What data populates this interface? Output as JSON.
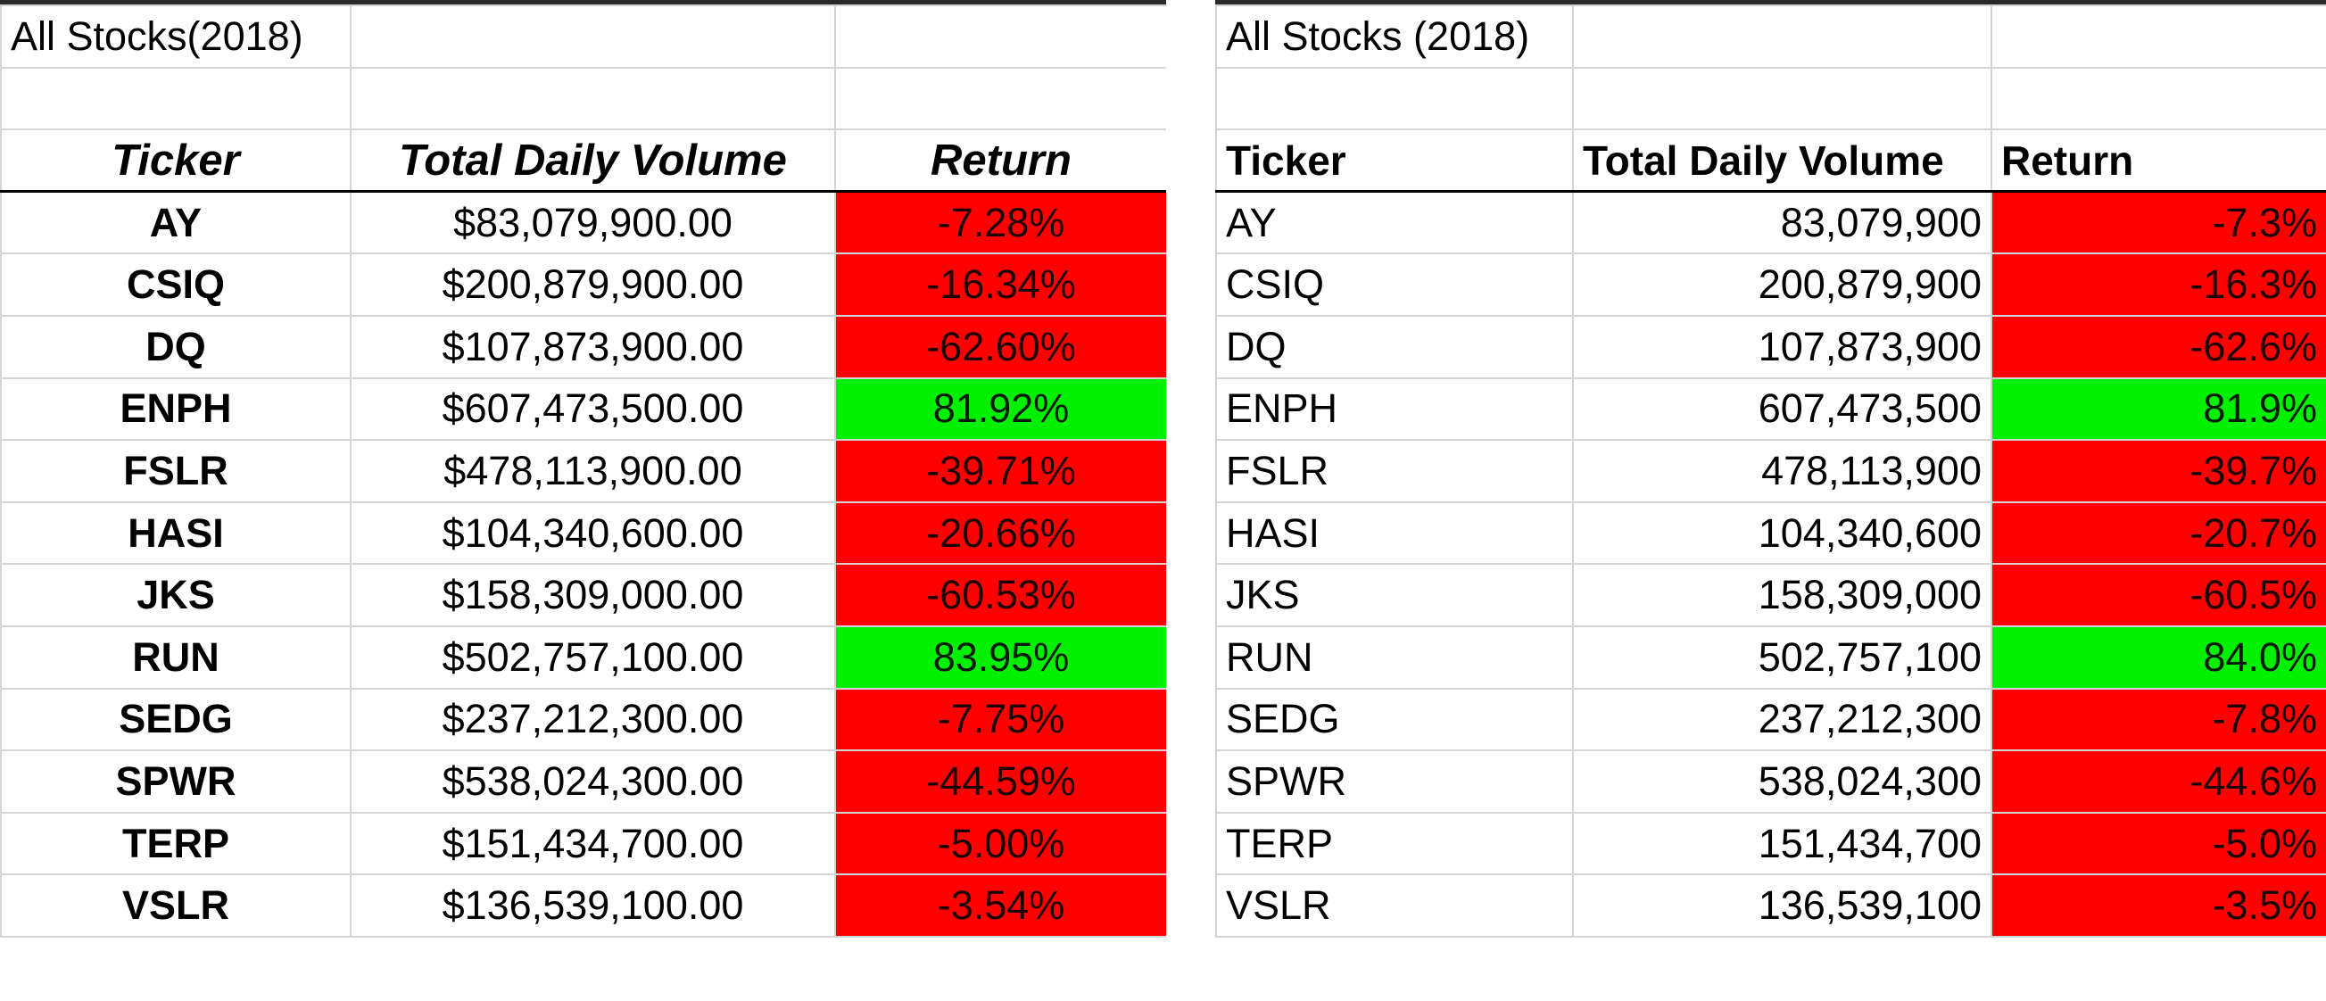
{
  "colors": {
    "negative_fill": "#ff0000",
    "positive_fill": "#00f000",
    "gridline": "#d4d4d4"
  },
  "left_sheet": {
    "title": "All Stocks(2018)",
    "headers": [
      "Ticker",
      "Total Daily Volume",
      "Return"
    ],
    "rows": [
      {
        "ticker": "AY",
        "volume": "$83,079,900.00",
        "return": "-7.28%",
        "status": "negative"
      },
      {
        "ticker": "CSIQ",
        "volume": "$200,879,900.00",
        "return": "-16.34%",
        "status": "negative"
      },
      {
        "ticker": "DQ",
        "volume": "$107,873,900.00",
        "return": "-62.60%",
        "status": "negative"
      },
      {
        "ticker": "ENPH",
        "volume": "$607,473,500.00",
        "return": "81.92%",
        "status": "positive"
      },
      {
        "ticker": "FSLR",
        "volume": "$478,113,900.00",
        "return": "-39.71%",
        "status": "negative"
      },
      {
        "ticker": "HASI",
        "volume": "$104,340,600.00",
        "return": "-20.66%",
        "status": "negative"
      },
      {
        "ticker": "JKS",
        "volume": "$158,309,000.00",
        "return": "-60.53%",
        "status": "negative"
      },
      {
        "ticker": "RUN",
        "volume": "$502,757,100.00",
        "return": "83.95%",
        "status": "positive"
      },
      {
        "ticker": "SEDG",
        "volume": "$237,212,300.00",
        "return": "-7.75%",
        "status": "negative"
      },
      {
        "ticker": "SPWR",
        "volume": "$538,024,300.00",
        "return": "-44.59%",
        "status": "negative"
      },
      {
        "ticker": "TERP",
        "volume": "$151,434,700.00",
        "return": "-5.00%",
        "status": "negative"
      },
      {
        "ticker": "VSLR",
        "volume": "$136,539,100.00",
        "return": "-3.54%",
        "status": "negative"
      }
    ]
  },
  "right_sheet": {
    "title": "All Stocks (2018)",
    "headers": [
      "Ticker",
      "Total Daily Volume",
      "Return"
    ],
    "rows": [
      {
        "ticker": "AY",
        "volume": "83,079,900",
        "return": "-7.3%",
        "status": "negative"
      },
      {
        "ticker": "CSIQ",
        "volume": "200,879,900",
        "return": "-16.3%",
        "status": "negative"
      },
      {
        "ticker": "DQ",
        "volume": "107,873,900",
        "return": "-62.6%",
        "status": "negative"
      },
      {
        "ticker": "ENPH",
        "volume": "607,473,500",
        "return": "81.9%",
        "status": "positive"
      },
      {
        "ticker": "FSLR",
        "volume": "478,113,900",
        "return": "-39.7%",
        "status": "negative"
      },
      {
        "ticker": "HASI",
        "volume": "104,340,600",
        "return": "-20.7%",
        "status": "negative"
      },
      {
        "ticker": "JKS",
        "volume": "158,309,000",
        "return": "-60.5%",
        "status": "negative"
      },
      {
        "ticker": "RUN",
        "volume": "502,757,100",
        "return": "84.0%",
        "status": "positive"
      },
      {
        "ticker": "SEDG",
        "volume": "237,212,300",
        "return": "-7.8%",
        "status": "negative"
      },
      {
        "ticker": "SPWR",
        "volume": "538,024,300",
        "return": "-44.6%",
        "status": "negative"
      },
      {
        "ticker": "TERP",
        "volume": "151,434,700",
        "return": "-5.0%",
        "status": "negative"
      },
      {
        "ticker": "VSLR",
        "volume": "136,539,100",
        "return": "-3.5%",
        "status": "negative"
      }
    ]
  }
}
